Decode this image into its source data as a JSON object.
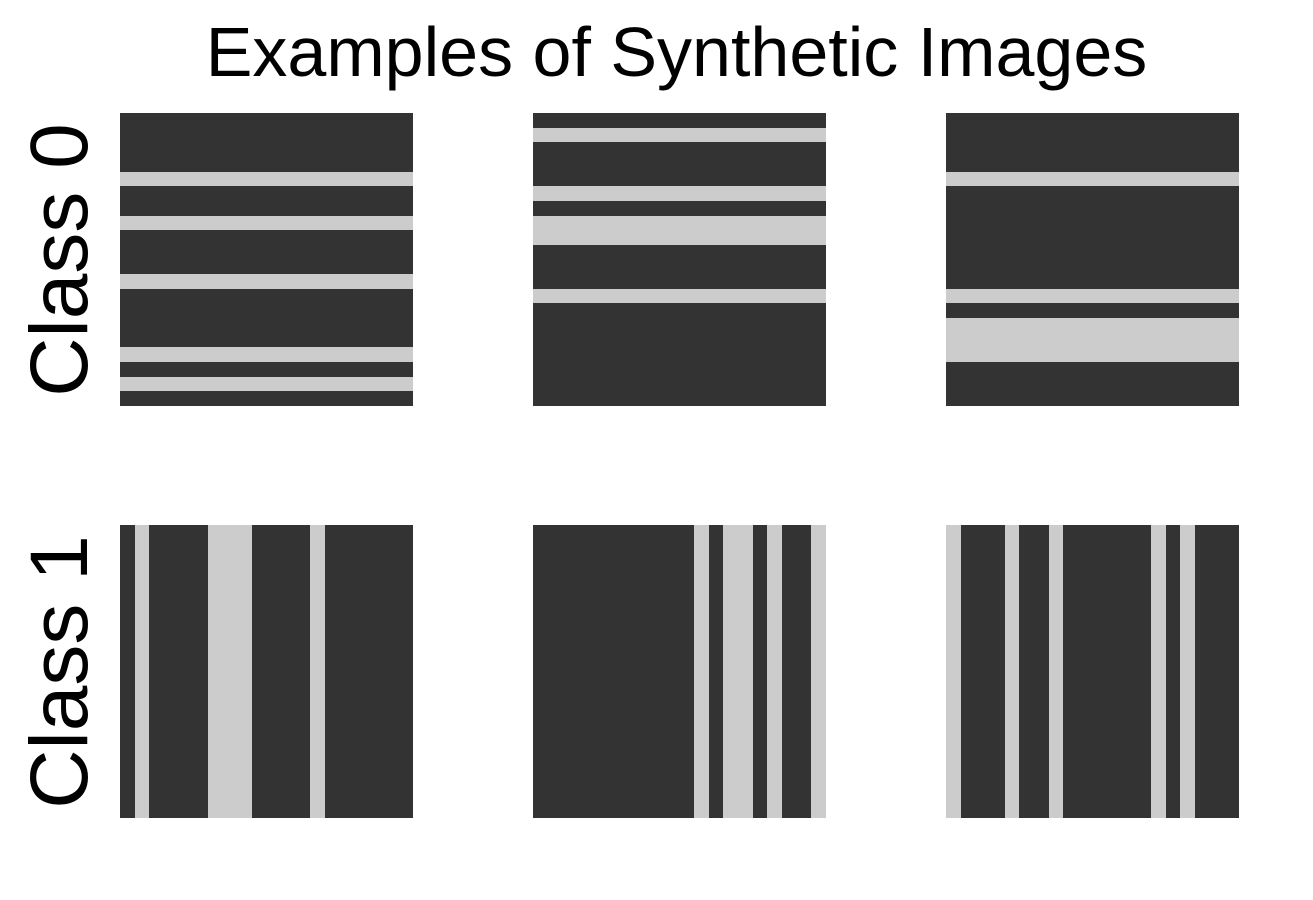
{
  "title": "Examples of Synthetic Images",
  "colors": {
    "dark": "#333333",
    "light": "#cccccc",
    "background": "#ffffff"
  },
  "grid_size": 20,
  "rows": [
    {
      "label": "Class 0",
      "orientation": "horizontal",
      "examples": [
        {
          "light_stripes": [
            4,
            7,
            11,
            16,
            18
          ]
        },
        {
          "light_stripes": [
            1,
            5,
            7,
            8,
            12
          ]
        },
        {
          "light_stripes": [
            4,
            12,
            14,
            15,
            16
          ]
        }
      ]
    },
    {
      "label": "Class 1",
      "orientation": "vertical",
      "examples": [
        {
          "light_stripes": [
            1,
            6,
            7,
            8,
            13
          ]
        },
        {
          "light_stripes": [
            11,
            13,
            14,
            16,
            19
          ]
        },
        {
          "light_stripes": [
            0,
            4,
            7,
            14,
            16
          ]
        }
      ]
    }
  ]
}
